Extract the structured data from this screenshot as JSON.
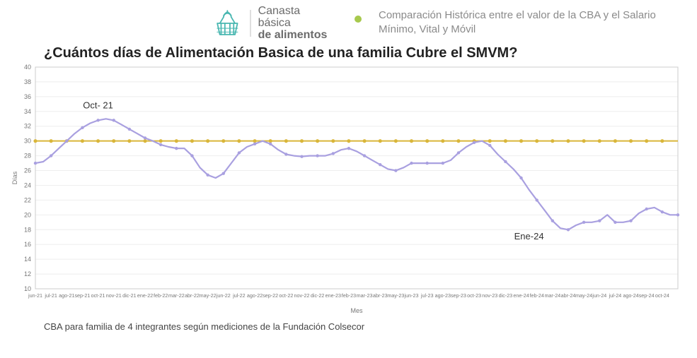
{
  "header": {
    "logo_line1": "Canasta básica",
    "logo_line2": "de alimentos",
    "bullet_color": "#a7c94d",
    "subtitle": "Comparación Histórica entre el valor de la CBA y el Salario Mínimo, Vital y Móvil"
  },
  "chart": {
    "type": "line",
    "title": "¿Cuántos días de Alimentación Basica de una familia Cubre el SMVM?",
    "ylabel": "Días",
    "xlabel": "Mes",
    "ylim": [
      10,
      40
    ],
    "ytick_step": 2,
    "xlim_index": [
      0,
      82
    ],
    "background_color": "#ffffff",
    "grid_color": "#eeeeee",
    "axis_color": "#cccccc",
    "line_color": "#a9a0e0",
    "line_width": 2.2,
    "marker_color": "#a9a0e0",
    "marker_radius": 2.2,
    "ref_line_color": "#d9b63a",
    "ref_line_value": 30,
    "ref_marker_color": "#d9b63a",
    "ref_marker_radius": 2.6,
    "annotations": [
      {
        "label": "Oct- 21",
        "x_index": 8,
        "y": 34.4
      },
      {
        "label": "Ene-24",
        "x_index": 63,
        "y": 16.7
      }
    ],
    "x_labels": [
      "jun-21",
      "jul-21",
      "ago-21",
      "sep-21",
      "oct-21",
      "nov-21",
      "dic-21",
      "ene-22",
      "feb-22",
      "mar-22",
      "abr-22",
      "may-22",
      "jun-22",
      "jul-22",
      "ago-22",
      "sep-22",
      "oct-22",
      "nov-22",
      "dic-22",
      "ene-23",
      "feb-23",
      "mar-23",
      "abr-23",
      "may-23",
      "jun-23",
      "jul-23",
      "ago-23",
      "sep-23",
      "oct-23",
      "nov-23",
      "dic-23",
      "ene-24",
      "feb-24",
      "mar-24",
      "abr-24",
      "may-24",
      "jun-24",
      "jul-24",
      "ago-24",
      "sep-24",
      "oct-24"
    ],
    "x_label_step": 2,
    "series": [
      27.0,
      27.2,
      28.0,
      29.0,
      30.0,
      31.0,
      31.8,
      32.4,
      32.8,
      33.0,
      32.8,
      32.2,
      31.6,
      31.0,
      30.4,
      30.0,
      29.5,
      29.2,
      29.0,
      29.0,
      28.0,
      26.4,
      25.4,
      25.0,
      25.6,
      27.0,
      28.4,
      29.2,
      29.6,
      30.0,
      29.6,
      28.8,
      28.2,
      28.0,
      27.9,
      28.0,
      28.0,
      28.0,
      28.3,
      28.8,
      29.0,
      28.6,
      28.0,
      27.4,
      26.8,
      26.2,
      26.0,
      26.4,
      27.0,
      27.0,
      27.0,
      27.0,
      27.0,
      27.4,
      28.4,
      29.2,
      29.8,
      30.0,
      29.4,
      28.2,
      27.2,
      26.2,
      25.0,
      23.4,
      22.0,
      20.6,
      19.2,
      18.2,
      18.0,
      18.6,
      19.0,
      19.0,
      19.2,
      20.0,
      19.0,
      19.0,
      19.2,
      20.2,
      20.8,
      21.0,
      20.4,
      20.0,
      20.0
    ]
  },
  "footnote": "CBA para familia de 4 integrantes según mediciones de la Fundación Colsecor",
  "logo_colors": {
    "stroke": "#49b7b1",
    "fill": "none"
  }
}
